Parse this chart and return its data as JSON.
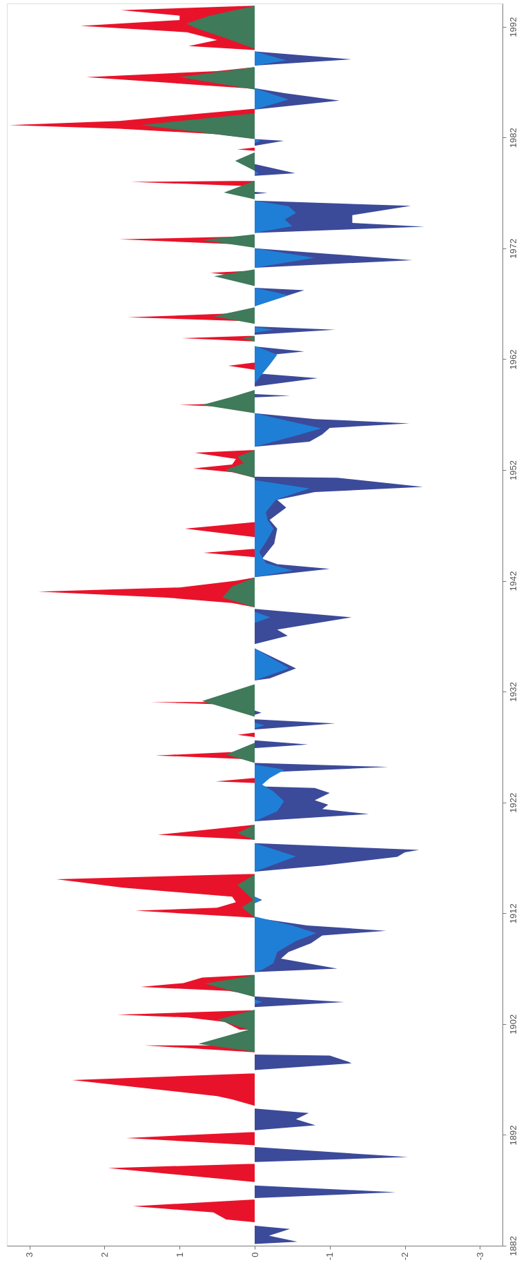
{
  "chart_data": {
    "type": "area",
    "orientation": "horizontal",
    "xlim": [
      3.3,
      -3.3
    ],
    "xticks": [
      3,
      2,
      1,
      0,
      -1,
      -2,
      -3
    ],
    "ylim": [
      1882,
      1994.1
    ],
    "yticks": [
      1882,
      1892,
      1902,
      1912,
      1922,
      1932,
      1942,
      1952,
      1962,
      1972,
      1982,
      1992
    ],
    "grid": false,
    "series": [
      {
        "color": "#e8132a",
        "x": [
          1884.11,
          1884.36,
          1885.0,
          1885.56,
          1886.17,
          1887.74,
          1889.0,
          1889.4,
          1891.06,
          1891.72,
          1892.26,
          1894.62,
          1895.2,
          1895.5,
          1896.94,
          1897.55,
          1899.46,
          1900.07,
          1900.45,
          1900.97,
          1901.5,
          1902.2,
          1902.6,
          1902.84,
          1903.25,
          1904.6,
          1905.0,
          1905.35,
          1905.7,
          1906.2,
          1906.45,
          1911.6,
          1912.23,
          1912.5,
          1913.0,
          1913.5,
          1914.3,
          1915.07,
          1915.55,
          1918.63,
          1919.08,
          1919.99,
          1923.76,
          1923.9,
          1924.21,
          1925.87,
          1926.24,
          1926.63,
          1927.9,
          1928.1,
          1928.3,
          1930.75,
          1931.06,
          1931.5,
          1931.9,
          1939.6,
          1940.0,
          1940.5,
          1941.03,
          1941.4,
          1942.0,
          1942.3,
          1944.14,
          1944.53,
          1944.89,
          1945.95,
          1946.7,
          1947.3,
          1951.3,
          1951.8,
          1952.14,
          1952.5,
          1953.0,
          1953.56,
          1953.8,
          1957.6,
          1957.87,
          1958.1,
          1961.04,
          1961.4,
          1961.7,
          1963.6,
          1963.9,
          1964.12,
          1965.4,
          1965.78,
          1966.1,
          1966.5,
          1969.3,
          1969.8,
          1970.0,
          1972.3,
          1972.81,
          1973.1,
          1977.6,
          1978.0,
          1978.1,
          1980.8,
          1980.93,
          1981.1,
          1981.9,
          1982.3,
          1982.8,
          1983.13,
          1983.5,
          1984.0,
          1984.6,
          1986.4,
          1987.45,
          1988.0,
          1988.35,
          1989.9,
          1990.26,
          1990.8,
          1991.5,
          1992.07,
          1992.6,
          1993.0,
          1993.49,
          1993.9
        ],
        "values": [
          0,
          0.38,
          0.55,
          1.62,
          0,
          0,
          1.95,
          0,
          0,
          1.71,
          0,
          0,
          0.3,
          0.5,
          2.43,
          0,
          0,
          1.47,
          null,
          null,
          0.2,
          0.4,
          0.9,
          1.83,
          0,
          0,
          0.35,
          1.52,
          0.95,
          0.7,
          0,
          0,
          1.59,
          0.5,
          0.25,
          0.3,
          1.75,
          2.64,
          0,
          0,
          1.29,
          0,
          0,
          0.52,
          0,
          0,
          1.32,
          0,
          0,
          0.23,
          0,
          0,
          1.39,
          null,
          0,
          0,
          0.3,
          1.2,
          2.88,
          1.0,
          0.25,
          0,
          0,
          0.68,
          0,
          0,
          0.93,
          0,
          0,
          0.3,
          0.82,
          0.3,
          0.25,
          0.8,
          0,
          0,
          1.0,
          0,
          0,
          0.35,
          0,
          0,
          0.97,
          0,
          0,
          1.69,
          0.4,
          0,
          0,
          0.59,
          0,
          0,
          1.8,
          0,
          0,
          1.65,
          0,
          0,
          0.23,
          0,
          0,
          0.5,
          1.8,
          3.27,
          1.8,
          1.0,
          0,
          0,
          2.24,
          0.5,
          0,
          0,
          0.88,
          0.5,
          0.9,
          2.32,
          1.0,
          1.0,
          1.78,
          0
        ]
      },
      {
        "color": "#3c4a9a",
        "x": [
          1882.15,
          1882.36,
          1882.91,
          1883.51,
          1883.81,
          1886.29,
          1886.83,
          1887.43,
          1889.55,
          1890.0,
          1890.9,
          1892.41,
          1892.87,
          1893.41,
          1893.98,
          1894.38,
          1897.85,
          1898.45,
          1898.6,
          1899.15,
          1899.25,
          1903.54,
          1903.99,
          1904.5,
          1906.7,
          1907.0,
          1907.9,
          1908.5,
          1909.3,
          1910.0,
          1910.42,
          1910.9,
          1911.6,
          1912.9,
          1913.2,
          1913.5,
          1915.76,
          1916.3,
          1917.1,
          1917.5,
          1917.72,
          1918.32,
          1920.3,
          1920.95,
          1921.4,
          1921.8,
          1922.2,
          1922.85,
          1923.3,
          1923.46,
          1924.67,
          1925.2,
          1925.57,
          1926.9,
          1927.23,
          1927.6,
          1928.59,
          1929.13,
          1929.5,
          1929.9,
          1930.1,
          1930.3,
          1933.0,
          1933.2,
          1934.1,
          1935.9,
          1936.29,
          1937.04,
          1937.6,
          1938.7,
          1939.46,
          1942.33,
          1943.08,
          1943.5,
          1944.0,
          1945.35,
          1946.7,
          1947.5,
          1948.6,
          1949.3,
          1950.0,
          1950.48,
          1951.3,
          1951.4,
          1954.1,
          1954.55,
          1955.2,
          1955.8,
          1956.21,
          1956.6,
          1957.12,
          1958.55,
          1958.7,
          1958.85,
          1959.53,
          1960.29,
          1960.74,
          1962.25,
          1962.7,
          1963.15,
          1964.21,
          1964.66,
          1964.96,
          1966.78,
          1967.77,
          1968.22,
          1968.44,
          1970.25,
          1970.94,
          1971.5,
          1972.0,
          1973.4,
          1973.96,
          1974.3,
          1975.0,
          1975.83,
          1976.3,
          1976.9,
          1977.0,
          1977.1,
          1978.54,
          1978.78,
          1979.6,
          1981.26,
          1981.71,
          1981.86,
          1984.52,
          1985.34,
          1986.0,
          1986.45,
          1988.5,
          1989.05,
          1989.77
        ],
        "values": [
          0,
          -0.57,
          -0.19,
          -0.47,
          0,
          0,
          -1.88,
          0,
          0,
          -2.04,
          0,
          0,
          -0.81,
          -0.55,
          -0.72,
          0,
          0,
          -1.29,
          -1.25,
          -1.0,
          0,
          0,
          -1.19,
          0,
          0,
          -1.1,
          -0.35,
          -0.45,
          -0.75,
          -0.9,
          -1.75,
          -0.7,
          0,
          0,
          -0.1,
          0,
          0,
          -0.9,
          -1.9,
          -2.0,
          -2.19,
          0,
          0,
          -1.52,
          -0.9,
          -0.98,
          -0.8,
          -1.0,
          -0.8,
          0,
          0,
          -1.78,
          0,
          0,
          -0.71,
          0,
          0,
          -1.07,
          0,
          0,
          -0.09,
          0,
          0,
          -0.2,
          -0.55,
          0,
          0,
          -0.44,
          -0.3,
          -1.29,
          0,
          0,
          -1.0,
          -0.3,
          -0.1,
          -0.26,
          -0.3,
          -0.2,
          -0.42,
          -0.3,
          -0.8,
          -2.24,
          -1.1,
          0,
          0,
          -0.73,
          -0.9,
          -1.0,
          -2.06,
          -0.8,
          0,
          0,
          -0.47,
          0,
          0,
          -0.84,
          0,
          0,
          -0.66,
          0,
          0,
          -1.07,
          0,
          0,
          -0.45,
          -0.66,
          0,
          0,
          -2.1,
          -1.0,
          0,
          0,
          -2.26,
          -1.3,
          -1.3,
          -2.08,
          0,
          0,
          -0.17,
          0,
          0,
          -0.54,
          0,
          0,
          -0.39,
          0,
          0,
          -1.13,
          -0.4,
          0,
          0,
          -1.29,
          0
        ]
      },
      {
        "color": "#3f7a5a",
        "x": [
          1899.5,
          1900.22,
          1901.5,
          1902.4,
          1903.3,
          1904.44,
          1905.65,
          1906.4,
          1911.6,
          1912.53,
          1913.2,
          1914.55,
          1915.5,
          1918.6,
          1919.23,
          1920.0,
          1925.57,
          1926.33,
          1927.38,
          1929.74,
          1931.15,
          1932.66,
          1939.6,
          1940.5,
          1941.5,
          1942.3,
          1951.29,
          1952.0,
          1952.6,
          1953.2,
          1953.8,
          1957.12,
          1957.87,
          1958.6,
          1959.23,
          1963.6,
          1963.9,
          1964.1,
          1965.18,
          1965.87,
          1966.68,
          1968.59,
          1969.49,
          1970.1,
          1972.06,
          1972.75,
          1973.27,
          1976.43,
          1977.04,
          1978.09,
          1979.0,
          1979.9,
          1980.66,
          1981.86,
          1983.13,
          1984.19,
          1986.33,
          1987.45,
          1988.35,
          1990.0,
          1991.0,
          1991.8,
          1992.28,
          1993.0,
          1993.88
        ],
        "values": [
          0,
          0.75,
          0.08,
          0.5,
          0,
          0,
          0.66,
          0,
          0,
          0.17,
          0.02,
          0.23,
          0,
          0,
          0.23,
          0,
          0,
          0.38,
          0,
          0,
          0.7,
          0,
          0,
          0.43,
          0.3,
          0,
          0,
          0.39,
          0.15,
          0.23,
          0,
          0,
          0.7,
          0.3,
          0,
          0,
          0.17,
          0,
          0,
          0.55,
          0,
          0,
          0.54,
          0,
          0,
          0.7,
          0,
          0,
          0.41,
          0,
          0,
          0.26,
          0,
          0,
          1.51,
          0,
          0,
          1.0,
          0,
          0,
          0.4,
          0.75,
          0.91,
          0.6,
          0
        ]
      },
      {
        "color": "#1f7fd6",
        "x": [
          1903.8,
          1904.0,
          1904.2,
          1906.7,
          1906.9,
          1907.5,
          1908.5,
          1909.5,
          1910.2,
          1910.9,
          1911.7,
          1912.9,
          1913.2,
          1913.5,
          1915.76,
          1917.12,
          1918.32,
          1920.3,
          1921.2,
          1922.1,
          1923.0,
          1923.6,
          1924.2,
          1924.96,
          1925.4,
          1928.7,
          1928.95,
          1929.2,
          1933.0,
          1934.11,
          1935.9,
          1938.2,
          1938.7,
          1939.2,
          1942.33,
          1942.93,
          1943.6,
          1944.6,
          1945.5,
          1946.7,
          1947.5,
          1948.2,
          1949.3,
          1950.33,
          1951.08,
          1954.1,
          1955.0,
          1955.76,
          1956.5,
          1957.12,
          1959.8,
          1960.5,
          1961.5,
          1962.4,
          1963.2,
          1964.4,
          1964.66,
          1964.9,
          1966.78,
          1967.77,
          1968.44,
          1970.25,
          1971.15,
          1972.0,
          1973.4,
          1974.0,
          1974.6,
          1975.2,
          1975.8,
          1976.3,
          1978.6,
          1978.78,
          1979.0,
          1981.5,
          1981.71,
          1981.86,
          1984.52,
          1985.43,
          1986.45,
          1988.5,
          1988.96,
          1989.77
        ],
        "values": [
          0,
          -0.1,
          0,
          0,
          -0.1,
          -0.25,
          -0.3,
          -0.55,
          -0.82,
          -0.5,
          0,
          0,
          -0.08,
          0,
          0,
          -0.55,
          0,
          0,
          -0.3,
          -0.39,
          -0.25,
          -0.1,
          -0.2,
          -0.4,
          0,
          0,
          -0.13,
          0,
          0,
          -0.46,
          0,
          0,
          -0.21,
          0,
          0,
          -0.51,
          -0.15,
          -0.06,
          -0.15,
          -0.25,
          -0.17,
          -0.15,
          -0.28,
          -0.73,
          0,
          0,
          -0.5,
          -0.89,
          -0.4,
          0,
          0,
          -0.08,
          -0.2,
          -0.3,
          0,
          0,
          -0.26,
          0,
          0,
          -0.45,
          0,
          0,
          -0.8,
          0,
          0,
          -0.5,
          -0.4,
          -0.55,
          -0.45,
          0,
          0,
          -0.05,
          0,
          0,
          -0.08,
          0,
          0,
          -0.45,
          0,
          0,
          -0.42,
          0
        ]
      }
    ]
  }
}
